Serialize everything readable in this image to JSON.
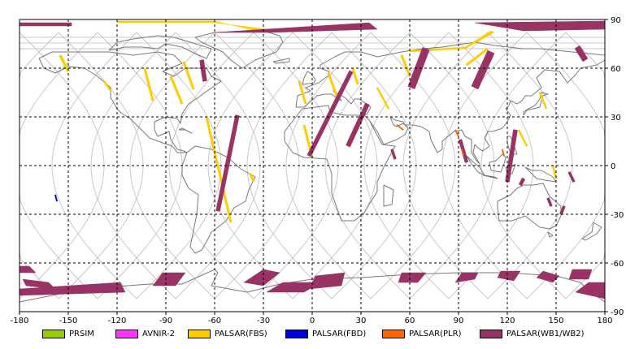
{
  "map": {
    "xlim": [
      -180,
      180
    ],
    "ylim": [
      -90,
      90
    ],
    "x_ticks": [
      "-180",
      "-150",
      "-120",
      "-90",
      "-60",
      "-30",
      "0",
      "30",
      "60",
      "90",
      "120",
      "150",
      "180"
    ],
    "y_ticks": [
      "90",
      "60",
      "30",
      "0",
      "-30",
      "-60",
      "-90"
    ],
    "grid": "dashed",
    "colors": {
      "coast": "#7a7a7a",
      "orbit": "#c8c8c8",
      "fbs": "#ffcc00",
      "wb": "#993366",
      "fbd": "#0000dd",
      "plr": "#ff6600"
    }
  },
  "legend": [
    {
      "label": "PRSIM",
      "color": "#99cc00"
    },
    {
      "label": "AVNIR-2",
      "color": "#ff33ff"
    },
    {
      "label": "PALSAR(FBS)",
      "color": "#ffcc00"
    },
    {
      "label": "PALSAR(FBD)",
      "color": "#0000dd"
    },
    {
      "label": "PALSAR(PLR)",
      "color": "#ff6600"
    },
    {
      "label": "PALSAR(WB1/WB2)",
      "color": "#993366"
    }
  ]
}
